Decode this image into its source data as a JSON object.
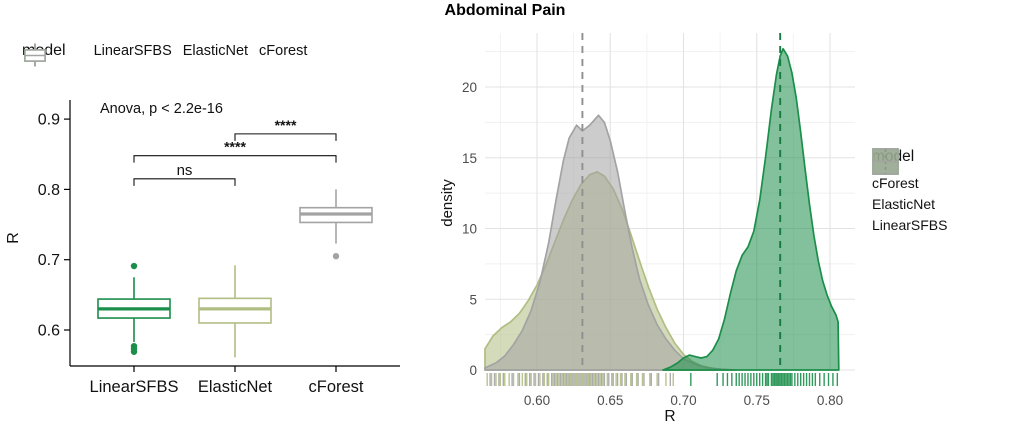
{
  "title": "Abdominal Pain",
  "left_legend": {
    "title": "model",
    "items": [
      {
        "label": "LinearSFBS"
      },
      {
        "label": "ElasticNet"
      },
      {
        "label": "cForest"
      }
    ]
  },
  "right_legend": {
    "title": "model",
    "items": [
      {
        "label": "cForest"
      },
      {
        "label": "ElasticNet"
      },
      {
        "label": "LinearSFBS"
      }
    ]
  },
  "chart_data": [
    {
      "type": "boxplot",
      "panel": "left",
      "annotation": "Anova, p < 2.2e-16",
      "ylabel": "R",
      "ylim": [
        0.547,
        0.93
      ],
      "yticks": [
        0.6,
        0.7,
        0.8,
        0.9
      ],
      "categories": [
        "LinearSFBS",
        "ElasticNet",
        "cForest"
      ],
      "colors": [
        "#1b8e4a",
        "#b0bd83",
        "#a3a3a3"
      ],
      "grid": false,
      "boxes": [
        {
          "model": "LinearSFBS",
          "q1": 0.617,
          "median": 0.63,
          "q3": 0.644,
          "whisker_low": 0.583,
          "whisker_high": 0.675,
          "outliers": [
            0.691,
            0.577,
            0.573,
            0.569
          ]
        },
        {
          "model": "ElasticNet",
          "q1": 0.61,
          "median": 0.63,
          "q3": 0.645,
          "whisker_low": 0.561,
          "whisker_high": 0.692,
          "outliers": []
        },
        {
          "model": "cForest",
          "q1": 0.753,
          "median": 0.765,
          "q3": 0.774,
          "whisker_low": 0.723,
          "whisker_high": 0.8,
          "outliers": [
            0.705
          ]
        }
      ],
      "comparisons": [
        {
          "group1": "LinearSFBS",
          "group2": "ElasticNet",
          "label": "ns",
          "y": 0.815
        },
        {
          "group1": "LinearSFBS",
          "group2": "cForest",
          "label": "****",
          "y": 0.848
        },
        {
          "group1": "ElasticNet",
          "group2": "cForest",
          "label": "****",
          "y": 0.879
        }
      ]
    },
    {
      "type": "density",
      "panel": "right",
      "xlabel": "R",
      "ylabel": "density",
      "xlim": [
        0.5645,
        0.817
      ],
      "ylim": [
        0,
        23.8
      ],
      "xticks": [
        0.6,
        0.65,
        0.7,
        0.75,
        0.8
      ],
      "yticks": [
        0,
        5,
        10,
        15,
        20
      ],
      "xticks_minor": [
        0.575,
        0.625,
        0.675,
        0.725,
        0.775
      ],
      "yticks_minor": [
        2.5,
        7.5,
        12.5,
        17.5,
        22.5
      ],
      "grid": true,
      "legend_position": "right",
      "series": [
        {
          "name": "ElasticNet",
          "color": "#b0bd83",
          "mean_line": null,
          "points": [
            [
              0.5645,
              1.5
            ],
            [
              0.57,
              2.4
            ],
            [
              0.576,
              3.0
            ],
            [
              0.582,
              3.4
            ],
            [
              0.588,
              4.0
            ],
            [
              0.594,
              4.9
            ],
            [
              0.6,
              6.0
            ],
            [
              0.606,
              7.4
            ],
            [
              0.612,
              9.0
            ],
            [
              0.618,
              10.6
            ],
            [
              0.624,
              12.0
            ],
            [
              0.63,
              13.1
            ],
            [
              0.636,
              13.8
            ],
            [
              0.641,
              14.0
            ],
            [
              0.646,
              13.7
            ],
            [
              0.652,
              12.8
            ],
            [
              0.658,
              11.4
            ],
            [
              0.664,
              9.6
            ],
            [
              0.67,
              7.7
            ],
            [
              0.676,
              5.9
            ],
            [
              0.682,
              4.3
            ],
            [
              0.688,
              3.0
            ],
            [
              0.694,
              1.9
            ],
            [
              0.7,
              1.1
            ],
            [
              0.706,
              0.6
            ],
            [
              0.712,
              0.3
            ],
            [
              0.72,
              0.12
            ],
            [
              0.73,
              0.0
            ]
          ]
        },
        {
          "name": "LinearSFBS",
          "color": "#a3a3a3",
          "mean_line": 0.631,
          "vline_color": "#8f8f8f",
          "points": [
            [
              0.5645,
              0.15
            ],
            [
              0.572,
              0.5
            ],
            [
              0.578,
              1.0
            ],
            [
              0.584,
              1.8
            ],
            [
              0.59,
              2.8
            ],
            [
              0.596,
              4.2
            ],
            [
              0.602,
              6.2
            ],
            [
              0.608,
              9.0
            ],
            [
              0.613,
              12.0
            ],
            [
              0.618,
              14.8
            ],
            [
              0.622,
              16.4
            ],
            [
              0.627,
              17.3
            ],
            [
              0.631,
              16.9
            ],
            [
              0.636,
              17.3
            ],
            [
              0.642,
              18.0
            ],
            [
              0.646,
              17.5
            ],
            [
              0.65,
              16.2
            ],
            [
              0.655,
              14.0
            ],
            [
              0.66,
              11.2
            ],
            [
              0.665,
              8.6
            ],
            [
              0.67,
              6.4
            ],
            [
              0.676,
              4.6
            ],
            [
              0.682,
              3.2
            ],
            [
              0.688,
              2.2
            ],
            [
              0.694,
              1.4
            ],
            [
              0.7,
              0.8
            ],
            [
              0.708,
              0.4
            ],
            [
              0.716,
              0.15
            ],
            [
              0.726,
              0.05
            ],
            [
              0.736,
              0.0
            ]
          ]
        },
        {
          "name": "cForest",
          "color": "#1b8e4a",
          "mean_line": 0.766,
          "vline_color": "#177a43",
          "points": [
            [
              0.686,
              0.0
            ],
            [
              0.691,
              0.2
            ],
            [
              0.696,
              0.5
            ],
            [
              0.7,
              0.85
            ],
            [
              0.704,
              1.05
            ],
            [
              0.708,
              0.95
            ],
            [
              0.712,
              0.85
            ],
            [
              0.716,
              0.95
            ],
            [
              0.72,
              1.4
            ],
            [
              0.724,
              2.2
            ],
            [
              0.728,
              3.6
            ],
            [
              0.732,
              5.4
            ],
            [
              0.736,
              7.0
            ],
            [
              0.74,
              8.1
            ],
            [
              0.744,
              8.7
            ],
            [
              0.748,
              9.8
            ],
            [
              0.752,
              12.0
            ],
            [
              0.756,
              15.0
            ],
            [
              0.76,
              18.4
            ],
            [
              0.7635,
              20.9
            ],
            [
              0.766,
              22.2
            ],
            [
              0.768,
              22.7
            ],
            [
              0.771,
              22.2
            ],
            [
              0.774,
              21.0
            ],
            [
              0.777,
              19.2
            ],
            [
              0.78,
              16.8
            ],
            [
              0.783,
              14.2
            ],
            [
              0.786,
              11.7
            ],
            [
              0.789,
              9.5
            ],
            [
              0.792,
              7.7
            ],
            [
              0.795,
              6.3
            ],
            [
              0.798,
              5.3
            ],
            [
              0.801,
              4.5
            ],
            [
              0.804,
              3.9
            ],
            [
              0.8055,
              3.4
            ],
            [
              0.806,
              0.0
            ]
          ]
        }
      ],
      "rug": [
        {
          "name": "ElasticNet",
          "color": "#b0bd83",
          "values": [
            0.566,
            0.569,
            0.572,
            0.575,
            0.578,
            0.581,
            0.584,
            0.587,
            0.59,
            0.593,
            0.596,
            0.599,
            0.602,
            0.605,
            0.608,
            0.611,
            0.613,
            0.615,
            0.617,
            0.619,
            0.621,
            0.623,
            0.625,
            0.627,
            0.629,
            0.631,
            0.633,
            0.635,
            0.637,
            0.639,
            0.641,
            0.643,
            0.645,
            0.648,
            0.651,
            0.654,
            0.657,
            0.66,
            0.664,
            0.668,
            0.672,
            0.677,
            0.682,
            0.688,
            0.693
          ]
        },
        {
          "name": "LinearSFBS",
          "color": "#a3a3a3",
          "values": [
            0.568,
            0.571,
            0.574,
            0.577,
            0.583,
            0.588,
            0.592,
            0.595,
            0.598,
            0.601,
            0.604,
            0.607,
            0.61,
            0.612,
            0.614,
            0.616,
            0.618,
            0.62,
            0.622,
            0.624,
            0.626,
            0.628,
            0.63,
            0.632,
            0.634,
            0.636,
            0.638,
            0.64,
            0.642,
            0.644,
            0.646,
            0.649,
            0.652,
            0.655,
            0.658,
            0.661,
            0.665,
            0.669,
            0.673,
            0.678,
            0.683,
            0.691
          ]
        },
        {
          "name": "cForest",
          "color": "#1b8e4a",
          "values": [
            0.705,
            0.723,
            0.727,
            0.73,
            0.733,
            0.736,
            0.738,
            0.74,
            0.742,
            0.744,
            0.746,
            0.748,
            0.75,
            0.752,
            0.754,
            0.756,
            0.757,
            0.758,
            0.76,
            0.761,
            0.762,
            0.763,
            0.764,
            0.765,
            0.766,
            0.767,
            0.768,
            0.769,
            0.77,
            0.771,
            0.772,
            0.773,
            0.774,
            0.776,
            0.778,
            0.78,
            0.782,
            0.784,
            0.786,
            0.788,
            0.79,
            0.793,
            0.796,
            0.799,
            0.802,
            0.805
          ]
        }
      ]
    }
  ]
}
